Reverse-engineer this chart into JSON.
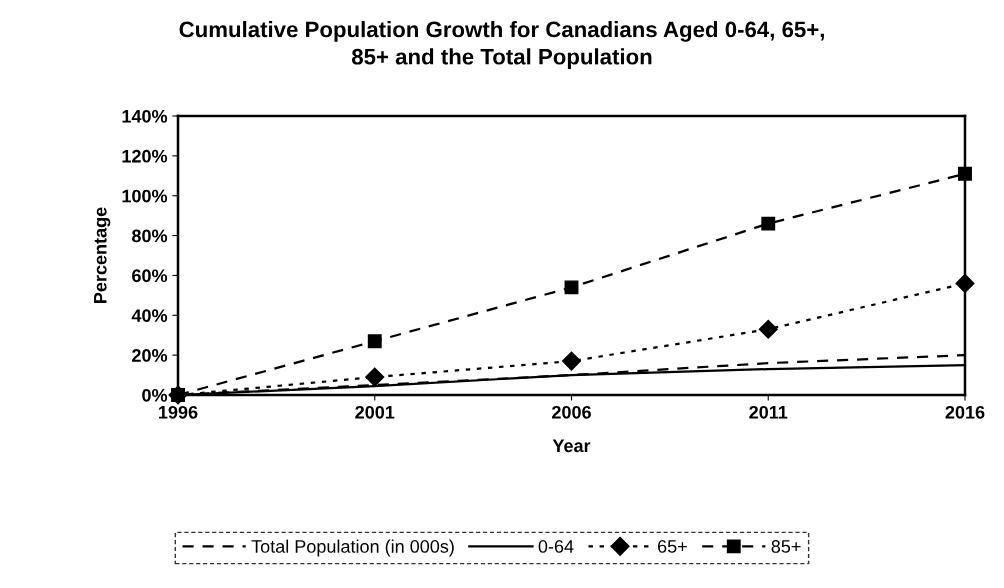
{
  "chart_data": {
    "type": "line",
    "title": "Cumulative Population Growth for Canadians Aged 0-64, 65+,\n85+ and the Total Population",
    "xlabel": "Year",
    "ylabel": "Percentage",
    "categories": [
      "1996",
      "2001",
      "2006",
      "2011",
      "2016"
    ],
    "series": [
      {
        "name": "Total Population (in 000s)",
        "color": "#000000",
        "values": [
          0,
          5,
          10,
          16,
          20
        ],
        "line_style": "dashed",
        "marker": "none"
      },
      {
        "name": "0-64",
        "color": "#000000",
        "values": [
          0,
          4.5,
          10,
          13,
          15
        ],
        "line_style": "solid",
        "marker": "none"
      },
      {
        "name": "65+",
        "color": "#000000",
        "values": [
          0,
          9,
          17,
          33,
          56
        ],
        "line_style": "dotted",
        "marker": "diamond"
      },
      {
        "name": "85+",
        "color": "#000000",
        "values": [
          0,
          27,
          54,
          86,
          111
        ],
        "line_style": "dashed",
        "marker": "square"
      }
    ],
    "ylim": [
      0,
      140
    ],
    "yticks": [
      {
        "value": 0,
        "label": "0%"
      },
      {
        "value": 20,
        "label": "20%"
      },
      {
        "value": 40,
        "label": "40%"
      },
      {
        "value": 60,
        "label": "60%"
      },
      {
        "value": 80,
        "label": "80%"
      },
      {
        "value": 100,
        "label": "100%"
      },
      {
        "value": 120,
        "label": "120%"
      },
      {
        "value": 140,
        "label": "140%"
      }
    ],
    "grid": false,
    "legend": "bottom"
  }
}
